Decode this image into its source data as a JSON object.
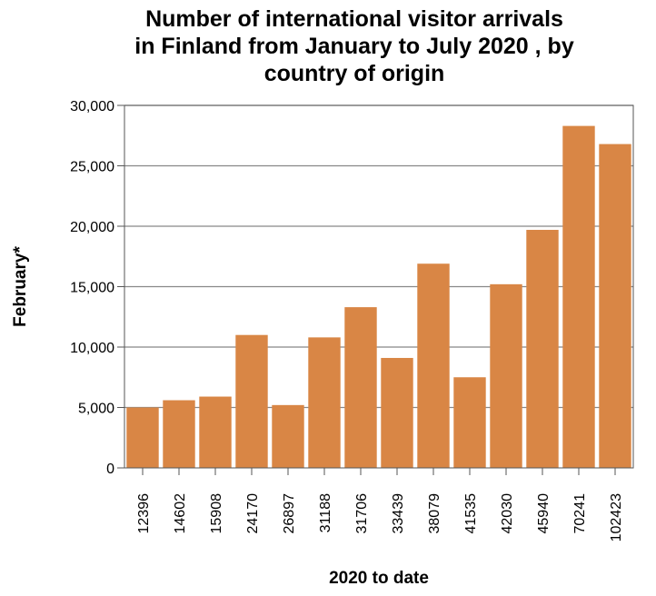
{
  "chart_data": {
    "type": "bar",
    "title_lines": [
      "Number of international visitor arrivals",
      "in Finland from January to July 2020 , by",
      "country of origin"
    ],
    "xlabel": "2020 to date",
    "ylabel": "February*",
    "categories": [
      "12396",
      "14602",
      "15908",
      "24170",
      "26897",
      "31188",
      "31706",
      "33439",
      "38079",
      "41535",
      "42030",
      "45940",
      "70241",
      "102423"
    ],
    "values": [
      5000,
      5600,
      5900,
      11000,
      5200,
      10800,
      13300,
      9100,
      16900,
      7500,
      15200,
      19700,
      28300,
      26800
    ],
    "ylim": [
      0,
      30000
    ],
    "yticks": [
      0,
      5000,
      10000,
      15000,
      20000,
      25000,
      30000
    ],
    "ytick_labels": [
      "0",
      "5,000",
      "10,000",
      "15,000",
      "20,000",
      "25,000",
      "30,000"
    ],
    "bar_color": "#d98645",
    "grid": true,
    "grid_color": "#888888"
  }
}
